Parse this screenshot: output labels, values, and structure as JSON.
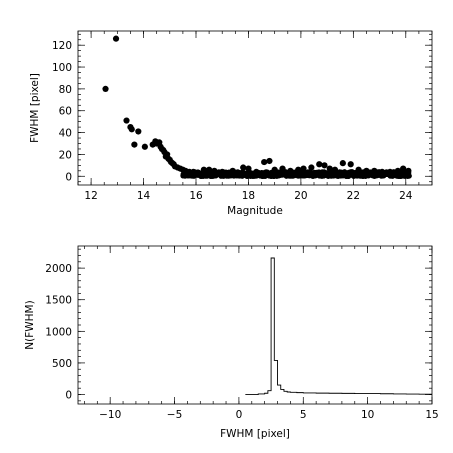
{
  "chart_data": [
    {
      "type": "scatter",
      "title": "",
      "xlabel": "Magnitude",
      "ylabel": "FWHM [pixel]",
      "xlim": [
        11.5,
        25.0
      ],
      "ylim": [
        -8,
        133
      ],
      "xticks": [
        12,
        14,
        16,
        18,
        20,
        22,
        24
      ],
      "yticks": [
        0,
        20,
        40,
        60,
        80,
        100,
        120
      ],
      "minor_x_step": 0.5,
      "minor_y_step": 5,
      "grid": false,
      "points": [
        [
          12.55,
          80
        ],
        [
          12.95,
          126
        ],
        [
          13.35,
          51
        ],
        [
          13.5,
          45
        ],
        [
          13.55,
          43
        ],
        [
          13.65,
          29
        ],
        [
          13.8,
          41
        ],
        [
          14.05,
          27
        ],
        [
          14.35,
          29
        ],
        [
          14.45,
          32
        ],
        [
          14.5,
          30
        ],
        [
          14.6,
          31
        ],
        [
          14.65,
          27
        ],
        [
          14.7,
          25
        ],
        [
          14.75,
          24
        ],
        [
          14.8,
          22
        ],
        [
          14.85,
          18
        ],
        [
          14.9,
          20
        ],
        [
          14.95,
          16
        ],
        [
          15.0,
          15
        ],
        [
          15.05,
          13
        ],
        [
          15.1,
          12
        ],
        [
          15.15,
          11
        ],
        [
          15.2,
          9
        ],
        [
          15.3,
          8
        ],
        [
          15.4,
          7
        ],
        [
          15.5,
          6
        ],
        [
          15.6,
          5
        ],
        [
          15.75,
          4
        ],
        [
          15.9,
          4
        ],
        [
          16.1,
          3
        ],
        [
          16.3,
          6
        ],
        [
          16.5,
          6
        ],
        [
          16.7,
          5
        ],
        [
          17.0,
          4
        ],
        [
          17.4,
          5
        ],
        [
          17.8,
          8
        ],
        [
          18.0,
          7
        ],
        [
          18.3,
          4
        ],
        [
          18.6,
          13
        ],
        [
          18.8,
          14
        ],
        [
          19.0,
          6
        ],
        [
          19.3,
          7
        ],
        [
          19.6,
          5
        ],
        [
          19.9,
          6
        ],
        [
          20.1,
          7
        ],
        [
          20.4,
          8
        ],
        [
          20.7,
          11
        ],
        [
          20.9,
          10
        ],
        [
          21.1,
          7
        ],
        [
          21.3,
          6
        ],
        [
          21.6,
          12
        ],
        [
          21.9,
          11
        ],
        [
          22.2,
          6
        ],
        [
          22.5,
          5
        ],
        [
          22.8,
          5
        ],
        [
          23.1,
          4
        ],
        [
          23.4,
          4
        ],
        [
          23.7,
          5
        ],
        [
          23.9,
          7
        ],
        [
          24.1,
          5
        ]
      ],
      "band": {
        "from": 15.5,
        "to": 24.1,
        "min": 0,
        "max": 4
      }
    },
    {
      "type": "histogram",
      "title": "",
      "xlabel": "FWHM [pixel]",
      "ylabel": "N(FWHM)",
      "xlim": [
        -12.5,
        15
      ],
      "ylim": [
        -150,
        2350
      ],
      "xticks": [
        -10,
        -5,
        0,
        5,
        10,
        15
      ],
      "yticks": [
        0,
        500,
        1000,
        1500,
        2000
      ],
      "minor_x_step": 1,
      "minor_y_step": 100,
      "grid": false,
      "bin_edges": [
        0.5,
        1.0,
        1.5,
        2.0,
        2.25,
        2.5,
        2.75,
        3.0,
        3.25,
        3.5,
        3.75,
        4.0,
        4.5,
        5.0,
        6.0,
        7.0,
        8.0,
        9.0,
        10.0,
        11.0,
        12.0,
        13.0,
        14.0,
        15.0
      ],
      "counts": [
        0,
        0,
        10,
        20,
        60,
        2160,
        540,
        150,
        80,
        50,
        40,
        35,
        30,
        25,
        22,
        20,
        18,
        15,
        15,
        12,
        10,
        8,
        6
      ]
    }
  ]
}
